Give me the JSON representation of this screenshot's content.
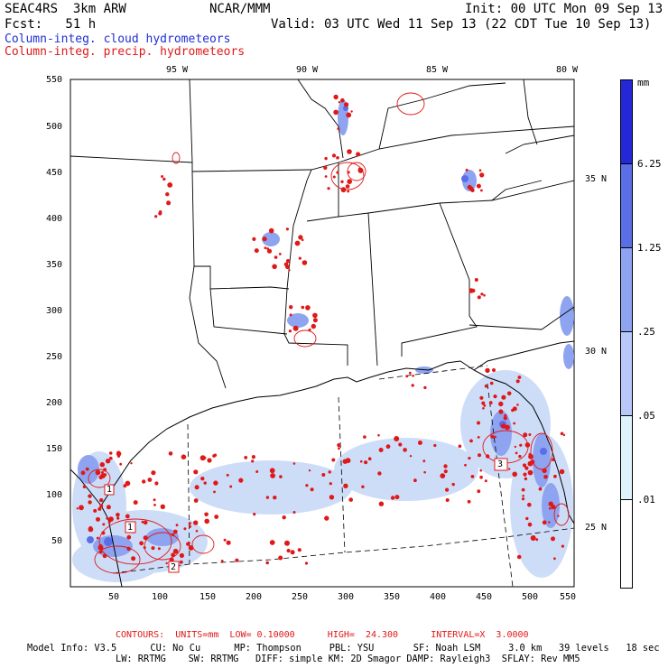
{
  "header": {
    "model": "SEAC4RS  3km ARW",
    "org": "NCAR/MMM",
    "init": "Init: 00 UTC Mon 09 Sep 13",
    "fcst": "Fcst:   51 h",
    "valid": "Valid: 03 UTC Wed 11 Sep 13 (22 CDT Tue 10 Sep 13)",
    "legend_cloud": "Column-integ. cloud hydrometeors",
    "legend_precip": "Column-integ. precip. hydrometeors"
  },
  "axes": {
    "top_lon": [
      "95 W",
      "90 W",
      "85 W",
      "80 W"
    ],
    "right_lat": [
      "35 N",
      "30 N",
      "25 N"
    ],
    "left_y": [
      "550",
      "500",
      "450",
      "400",
      "350",
      "300",
      "250",
      "200",
      "150",
      "100",
      "50"
    ],
    "bottom_x": [
      "50",
      "100",
      "150",
      "200",
      "250",
      "300",
      "350",
      "400",
      "450",
      "500",
      "550"
    ]
  },
  "colorbar": {
    "unit": "mm",
    "labels": [
      "6.25",
      "1.25",
      ".25",
      ".05",
      ".01"
    ],
    "colors": [
      "#2428d8",
      "#5a6ee8",
      "#8ea4f0",
      "#b8c8f8",
      "#dff4fa",
      "#ffffff"
    ]
  },
  "station_markers": [
    "1",
    "1",
    "2",
    "3"
  ],
  "footer": {
    "contours": "CONTOURS:  UNITS=mm  LOW= 0.10000      HIGH=  24.300      INTERVAL=X  3.0000",
    "line1": "Model Info: V3.5      CU: No Cu      MP: Thompson     PBL: YSU       SF: Noah LSM     3.0 km   39 levels   18 sec",
    "line2": "LW: RRTMG    SW: RRTMG   DIFF: simple KM: 2D Smagor DAMP: Rayleigh3  SFLAY: Rev MM5"
  }
}
